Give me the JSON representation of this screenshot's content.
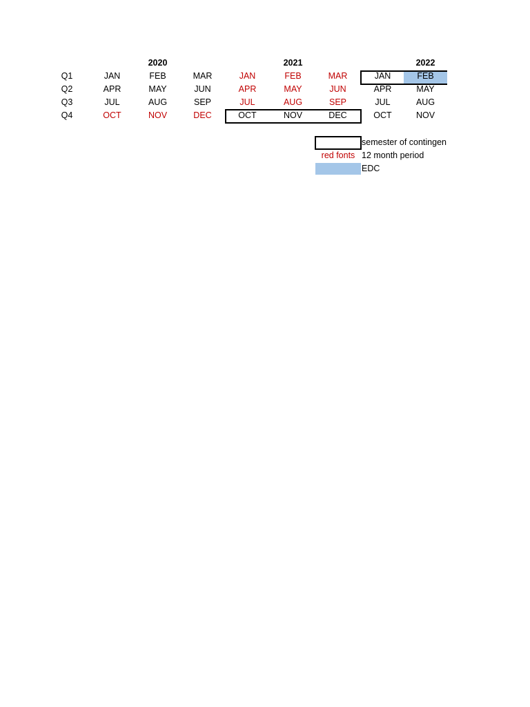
{
  "years": [
    "2020",
    "2021",
    "2022"
  ],
  "quarters": [
    "Q1",
    "Q2",
    "Q3",
    "Q4"
  ],
  "colors": {
    "red_font": "#c00000",
    "black_font": "#000000",
    "edc_fill": "#a4c6e8"
  },
  "grid": [
    [
      {
        "text": "JAN",
        "color": "black"
      },
      {
        "text": "FEB",
        "color": "black"
      },
      {
        "text": "MAR",
        "color": "black"
      },
      {
        "text": "JAN",
        "color": "red"
      },
      {
        "text": "FEB",
        "color": "red"
      },
      {
        "text": "MAR",
        "color": "red"
      },
      {
        "text": "JAN",
        "color": "black"
      },
      {
        "text": "FEB",
        "color": "black",
        "edc": true
      }
    ],
    [
      {
        "text": "APR",
        "color": "black"
      },
      {
        "text": "MAY",
        "color": "black"
      },
      {
        "text": "JUN",
        "color": "black"
      },
      {
        "text": "APR",
        "color": "red"
      },
      {
        "text": "MAY",
        "color": "red"
      },
      {
        "text": "JUN",
        "color": "red"
      },
      {
        "text": "APR",
        "color": "black"
      },
      {
        "text": "MAY",
        "color": "black"
      }
    ],
    [
      {
        "text": "JUL",
        "color": "black"
      },
      {
        "text": "AUG",
        "color": "black"
      },
      {
        "text": "SEP",
        "color": "black"
      },
      {
        "text": "JUL",
        "color": "red"
      },
      {
        "text": "AUG",
        "color": "red"
      },
      {
        "text": "SEP",
        "color": "red"
      },
      {
        "text": "JUL",
        "color": "black"
      },
      {
        "text": "AUG",
        "color": "black"
      }
    ],
    [
      {
        "text": "OCT",
        "color": "red"
      },
      {
        "text": "NOV",
        "color": "red"
      },
      {
        "text": "DEC",
        "color": "red"
      },
      {
        "text": "OCT",
        "color": "black"
      },
      {
        "text": "NOV",
        "color": "black"
      },
      {
        "text": "DEC",
        "color": "black"
      },
      {
        "text": "OCT",
        "color": "black"
      },
      {
        "text": "NOV",
        "color": "black"
      }
    ]
  ],
  "legend": {
    "semester": "semester of contingen",
    "red_fonts_sample": "red fonts",
    "red_fonts": "12 month period",
    "edc": "EDC"
  }
}
